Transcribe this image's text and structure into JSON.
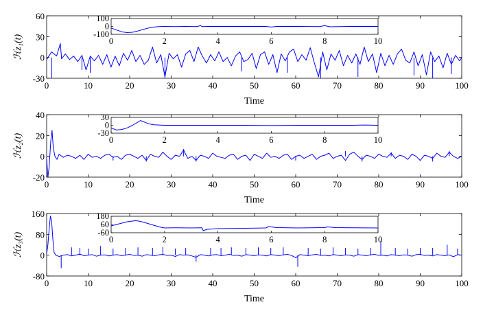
{
  "chart_data": [
    {
      "type": "line",
      "ylabel": "ℋz₁(t)",
      "xlabel": "Time",
      "xlim": [
        0,
        100
      ],
      "ylim": [
        -30,
        60
      ],
      "xticks": [
        0,
        10,
        20,
        30,
        40,
        50,
        60,
        70,
        80,
        90,
        100
      ],
      "yticks": [
        -30,
        0,
        30,
        60
      ],
      "color": "#0000ff",
      "series": [
        {
          "name": "main",
          "x": [
            0,
            1.2,
            2.4,
            3.3,
            3.6,
            4.5,
            5.5,
            6.5,
            7.5,
            8.5,
            9.5,
            10.5,
            11.5,
            12.5,
            13.5,
            14.5,
            15.5,
            16.5,
            17.5,
            18.5,
            19.5,
            20.5,
            21.5,
            22.5,
            23.5,
            24.5,
            25.5,
            26.5,
            27.5,
            28.5,
            29.5,
            30.5,
            31.5,
            32.5,
            33.5,
            34.5,
            35.5,
            36.5,
            37.5,
            38.5,
            39.5,
            40.5,
            41.5,
            42.5,
            43.5,
            44.5,
            45.5,
            46.5,
            47.5,
            48.5,
            49.5,
            50.5,
            51.5,
            52.5,
            53.5,
            54.5,
            55.5,
            56.5,
            57.5,
            58.5,
            59.5,
            60.5,
            61.5,
            62.5,
            63.5,
            64.5,
            65.5,
            66.5,
            67.5,
            68.5,
            69.5,
            70.5,
            71.5,
            72.5,
            73.5,
            74.5,
            75.5,
            76.5,
            77.5,
            78.5,
            79.5,
            80.5,
            81.5,
            82.5,
            83.5,
            84.5,
            85.5,
            86.5,
            87.5,
            88.5,
            89.5,
            90.5,
            91.5,
            92.5,
            93.5,
            94.5,
            95.5,
            96.5,
            97.5,
            98.5,
            99.5,
            100
          ],
          "y": [
            -3,
            8,
            2,
            20,
            -2,
            5,
            -3,
            2,
            -6,
            3,
            -18,
            2,
            -5,
            3,
            -10,
            4,
            -14,
            2,
            -12,
            6,
            -4,
            10,
            -6,
            3,
            -10,
            -4,
            15,
            -8,
            4,
            -28,
            6,
            -2,
            4,
            -14,
            5,
            10,
            -6,
            15,
            2,
            -8,
            4,
            -5,
            8,
            -6,
            0,
            -12,
            2,
            8,
            -6,
            -3,
            6,
            -16,
            4,
            8,
            -10,
            4,
            -22,
            5,
            -5,
            8,
            12,
            -6,
            4,
            -4,
            14,
            -8,
            -28,
            8,
            -18,
            5,
            -4,
            10,
            -12,
            3,
            -8,
            5,
            -10,
            15,
            -6,
            5,
            -22,
            6,
            -12,
            3,
            -10,
            5,
            12,
            -4,
            -8,
            8,
            -12,
            4,
            -25,
            8,
            -6,
            2,
            -15,
            6,
            -10,
            3,
            -5,
            0
          ],
          "spikes": [
            {
              "x": 1.2,
              "y": -30
            },
            {
              "x": 8.5,
              "y": -18
            },
            {
              "x": 10.5,
              "y": -22
            },
            {
              "x": 28.5,
              "y": -30
            },
            {
              "x": 47.0,
              "y": -20
            },
            {
              "x": 58.0,
              "y": -22
            },
            {
              "x": 66.0,
              "y": -30
            },
            {
              "x": 75.0,
              "y": -28
            },
            {
              "x": 88.5,
              "y": -26
            },
            {
              "x": 93.0,
              "y": -30
            },
            {
              "x": 97.5,
              "y": -24
            }
          ]
        }
      ],
      "inset": {
        "xlim": [
          0,
          10
        ],
        "ylim": [
          -100,
          100
        ],
        "xticks": [
          0,
          2,
          4,
          6,
          8,
          10
        ],
        "yticks": [
          -100,
          0,
          100
        ],
        "x": [
          0,
          0.2,
          0.4,
          0.6,
          0.8,
          1.0,
          1.2,
          1.4,
          1.6,
          1.8,
          2.0,
          2.4,
          2.8,
          3.2,
          3.35,
          3.4,
          3.6,
          4.0,
          5.0,
          5.8,
          6.0,
          6.2,
          7.0,
          7.8,
          8.0,
          8.2,
          9.0,
          10.0
        ],
        "y": [
          -20,
          -45,
          -68,
          -78,
          -74,
          -58,
          -38,
          -20,
          -8,
          -2,
          0,
          -2,
          0,
          -2,
          10,
          -2,
          0,
          0,
          0,
          0,
          -8,
          0,
          0,
          -2,
          10,
          -4,
          0,
          0
        ]
      }
    },
    {
      "type": "line",
      "ylabel": "ℋz₂(t)",
      "xlabel": "Time",
      "xlim": [
        0,
        100
      ],
      "ylim": [
        -20,
        40
      ],
      "xticks": [
        0,
        10,
        20,
        30,
        40,
        50,
        60,
        70,
        80,
        90,
        100
      ],
      "yticks": [
        -20,
        0,
        20,
        40
      ],
      "color": "#0000ff",
      "series": [
        {
          "name": "main",
          "x": [
            0,
            0.3,
            0.6,
            1.0,
            1.3,
            1.6,
            2.0,
            2.5,
            3,
            4,
            5,
            6,
            7,
            8,
            9,
            10,
            11,
            12,
            13,
            14,
            15,
            16,
            17,
            18,
            19,
            20,
            21,
            22,
            23,
            24,
            25,
            26,
            27,
            28,
            29,
            30,
            31,
            32,
            33,
            34,
            35,
            36,
            37,
            38,
            39,
            40,
            41,
            42,
            43,
            44,
            45,
            46,
            47,
            48,
            49,
            50,
            51,
            52,
            53,
            54,
            55,
            56,
            57,
            58,
            59,
            60,
            61,
            62,
            63,
            64,
            65,
            66,
            67,
            68,
            69,
            70,
            71,
            72,
            73,
            74,
            75,
            76,
            77,
            78,
            79,
            80,
            81,
            82,
            83,
            84,
            85,
            86,
            87,
            88,
            89,
            90,
            91,
            92,
            93,
            94,
            95,
            96,
            97,
            98,
            99,
            100
          ],
          "y": [
            -2,
            -20,
            -10,
            15,
            25,
            8,
            0,
            -3,
            2,
            -1,
            1,
            0,
            -2,
            1,
            -3,
            2,
            -1,
            0,
            -2,
            1,
            2,
            -1,
            0,
            -3,
            1,
            2,
            0,
            -2,
            1,
            -4,
            2,
            0,
            -1,
            4,
            0,
            -3,
            1,
            0,
            6,
            -2,
            0,
            -4,
            1,
            0,
            -2,
            3,
            0,
            -1,
            -2,
            1,
            2,
            -3,
            0,
            1,
            -4,
            2,
            0,
            -2,
            3,
            -1,
            0,
            -2,
            1,
            2,
            -3,
            0,
            1,
            -2,
            0,
            2,
            -3,
            0,
            1,
            3,
            -2,
            0,
            1,
            -4,
            2,
            4,
            0,
            -3,
            1,
            0,
            -2,
            2,
            0,
            -1,
            3,
            -2,
            1,
            0,
            -3,
            2,
            0,
            -4,
            1,
            0,
            -2,
            3,
            0,
            -1,
            4,
            0,
            -2,
            0
          ],
          "spikes": [
            {
              "x": 16.0,
              "y": -4
            },
            {
              "x": 24.0,
              "y": -5
            },
            {
              "x": 33.0,
              "y": 7
            },
            {
              "x": 36.0,
              "y": -5
            },
            {
              "x": 60.0,
              "y": -4
            },
            {
              "x": 72.0,
              "y": 5
            },
            {
              "x": 76.0,
              "y": -5
            },
            {
              "x": 83.0,
              "y": 4
            },
            {
              "x": 93.0,
              "y": -5
            },
            {
              "x": 97.0,
              "y": 5
            }
          ]
        }
      ],
      "inset": {
        "xlim": [
          0,
          10
        ],
        "ylim": [
          -30,
          30
        ],
        "xticks": [
          0,
          2,
          4,
          6,
          8,
          10
        ],
        "yticks": [
          -30,
          0,
          30
        ],
        "x": [
          0,
          0.2,
          0.4,
          0.6,
          0.8,
          1.0,
          1.1,
          1.2,
          1.4,
          1.6,
          2.0,
          3.0,
          4.0,
          5.0,
          6.0,
          7.0,
          8.0,
          9.0,
          9.5,
          10.0
        ],
        "y": [
          -10,
          -18,
          -16,
          -10,
          0,
          12,
          18,
          14,
          6,
          2,
          0,
          0,
          0,
          0,
          -1,
          0,
          0,
          0,
          1,
          0
        ]
      }
    },
    {
      "type": "line",
      "ylabel": "ℋz₃(t)",
      "xlabel": "Time",
      "xlim": [
        0,
        100
      ],
      "ylim": [
        -80,
        160
      ],
      "xticks": [
        0,
        10,
        20,
        30,
        40,
        50,
        60,
        70,
        80,
        90,
        100
      ],
      "yticks": [
        -80,
        0,
        80,
        160
      ],
      "color": "#0000ff",
      "series": [
        {
          "name": "main",
          "x": [
            0,
            0.3,
            0.6,
            0.9,
            1.2,
            1.5,
            1.8,
            2.2,
            3,
            4,
            5,
            6,
            7,
            8,
            9,
            10,
            11,
            12,
            13,
            14,
            15,
            16,
            17,
            18,
            19,
            20,
            21,
            22,
            23,
            24,
            25,
            26,
            27,
            28,
            29,
            30,
            31,
            32,
            33,
            34,
            35,
            36,
            37,
            38,
            39,
            40,
            41,
            42,
            43,
            44,
            45,
            46,
            47,
            48,
            49,
            50,
            51,
            52,
            53,
            54,
            55,
            56,
            57,
            58,
            59,
            60,
            61,
            62,
            63,
            64,
            65,
            66,
            67,
            68,
            69,
            70,
            71,
            72,
            73,
            74,
            75,
            76,
            77,
            78,
            79,
            80,
            81,
            82,
            83,
            84,
            85,
            86,
            87,
            88,
            89,
            90,
            91,
            92,
            93,
            94,
            95,
            96,
            97,
            98,
            99,
            100
          ],
          "y": [
            5,
            40,
            100,
            150,
            130,
            60,
            10,
            0,
            -5,
            0,
            2,
            -3,
            0,
            4,
            -2,
            0,
            2,
            -4,
            0,
            1,
            -3,
            0,
            2,
            -2,
            0,
            3,
            -1,
            0,
            -4,
            2,
            0,
            -2,
            1,
            3,
            -1,
            0,
            -5,
            2,
            0,
            1,
            -3,
            -8,
            2,
            0,
            -3,
            1,
            2,
            -2,
            0,
            3,
            -1,
            0,
            -4,
            2,
            0,
            -2,
            1,
            0,
            -3,
            2,
            0,
            -2,
            1,
            3,
            -1,
            -10,
            2,
            0,
            -2,
            1,
            3,
            -1,
            0,
            -3,
            2,
            0,
            -2,
            1,
            0,
            -4,
            2,
            0,
            -2,
            1,
            3,
            -1,
            0,
            -3,
            2,
            0,
            -2,
            1,
            0,
            -4,
            2,
            3,
            -1,
            0,
            -3,
            2,
            0,
            -2,
            1,
            -6,
            2,
            0
          ],
          "spikes": [
            {
              "x": 3.5,
              "y": -50
            },
            {
              "x": 6.0,
              "y": 30
            },
            {
              "x": 8.0,
              "y": 28
            },
            {
              "x": 10.0,
              "y": 25
            },
            {
              "x": 13.0,
              "y": 35
            },
            {
              "x": 16.0,
              "y": 25
            },
            {
              "x": 19.0,
              "y": 28
            },
            {
              "x": 22.0,
              "y": 30
            },
            {
              "x": 25.5,
              "y": 28
            },
            {
              "x": 28.0,
              "y": 32
            },
            {
              "x": 31.0,
              "y": 25
            },
            {
              "x": 33.5,
              "y": 28
            },
            {
              "x": 36.0,
              "y": -25
            },
            {
              "x": 39.5,
              "y": 28
            },
            {
              "x": 42.0,
              "y": 28
            },
            {
              "x": 44.5,
              "y": 30
            },
            {
              "x": 48.0,
              "y": 28
            },
            {
              "x": 51.0,
              "y": 30
            },
            {
              "x": 54.0,
              "y": 28
            },
            {
              "x": 57.0,
              "y": 30
            },
            {
              "x": 60.5,
              "y": -45
            },
            {
              "x": 63.0,
              "y": 28
            },
            {
              "x": 66.0,
              "y": 25
            },
            {
              "x": 69.0,
              "y": 30
            },
            {
              "x": 72.0,
              "y": 28
            },
            {
              "x": 75.0,
              "y": 25
            },
            {
              "x": 78.0,
              "y": 28
            },
            {
              "x": 80.5,
              "y": 55
            },
            {
              "x": 84.0,
              "y": 28
            },
            {
              "x": 87.0,
              "y": 25
            },
            {
              "x": 90.0,
              "y": 28
            },
            {
              "x": 93.0,
              "y": 28
            },
            {
              "x": 96.5,
              "y": 40
            },
            {
              "x": 99.0,
              "y": 25
            }
          ]
        }
      ],
      "inset": {
        "xlim": [
          0,
          10
        ],
        "ylim": [
          -60,
          180
        ],
        "xticks": [
          0,
          2,
          4,
          6,
          8,
          10
        ],
        "yticks": [
          -60,
          60,
          180
        ],
        "x": [
          0,
          0.3,
          0.6,
          0.9,
          1.0,
          1.2,
          1.5,
          1.8,
          2.0,
          2.4,
          3.0,
          3.4,
          3.45,
          3.6,
          4.0,
          5.0,
          5.8,
          5.9,
          6.2,
          7.0,
          8.0,
          8.1,
          8.4,
          9.0,
          10.0
        ],
        "y": [
          40,
          70,
          100,
          115,
          112,
          95,
          60,
          25,
          10,
          12,
          10,
          12,
          -30,
          -10,
          0,
          5,
          10,
          30,
          15,
          10,
          15,
          25,
          15,
          12,
          10
        ]
      }
    }
  ]
}
